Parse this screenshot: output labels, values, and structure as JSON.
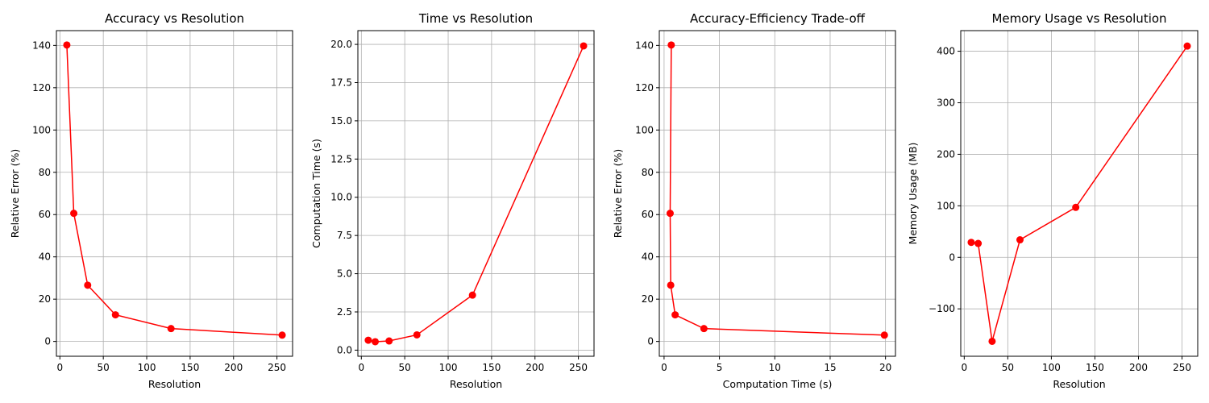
{
  "colors": {
    "series": "#ff0000",
    "grid": "#b0b0b0"
  },
  "chart_data": [
    {
      "type": "line",
      "title": "Accuracy vs Resolution",
      "xlabel": "Resolution",
      "ylabel": "Relative Error (%)",
      "xlim": [
        -4,
        268
      ],
      "ylim": [
        -7,
        147
      ],
      "xticks": [
        0,
        50,
        100,
        150,
        200,
        250
      ],
      "xtick_labels": [
        "0",
        "50",
        "100",
        "150",
        "200",
        "250"
      ],
      "yticks": [
        0,
        20,
        40,
        60,
        80,
        100,
        120,
        140
      ],
      "ytick_labels": [
        "0",
        "20",
        "40",
        "60",
        "80",
        "100",
        "120",
        "140"
      ],
      "grid": true,
      "x": [
        8,
        16,
        32,
        64,
        128,
        256
      ],
      "y": [
        140.2,
        60.6,
        26.6,
        12.6,
        6.1,
        3.0
      ]
    },
    {
      "type": "line",
      "title": "Time vs Resolution",
      "xlabel": "Resolution",
      "ylabel": "Computation Time (s)",
      "xlim": [
        -4,
        268
      ],
      "ylim": [
        -0.4,
        20.9
      ],
      "xticks": [
        0,
        50,
        100,
        150,
        200,
        250
      ],
      "xtick_labels": [
        "0",
        "50",
        "100",
        "150",
        "200",
        "250"
      ],
      "yticks": [
        0,
        2.5,
        5,
        7.5,
        10,
        12.5,
        15,
        17.5,
        20
      ],
      "ytick_labels": [
        "0.0",
        "2.5",
        "5.0",
        "7.5",
        "10.0",
        "12.5",
        "15.0",
        "17.5",
        "20.0"
      ],
      "grid": true,
      "x": [
        8,
        16,
        32,
        64,
        128,
        256
      ],
      "y": [
        0.65,
        0.55,
        0.6,
        1.0,
        3.6,
        19.9
      ]
    },
    {
      "type": "line",
      "title": "Accuracy-Efficiency Trade-off",
      "xlabel": "Computation Time (s)",
      "ylabel": "Relative Error (%)",
      "xlim": [
        -0.43,
        20.9
      ],
      "ylim": [
        -7,
        147
      ],
      "xticks": [
        0,
        5,
        10,
        15,
        20
      ],
      "xtick_labels": [
        "0",
        "5",
        "10",
        "15",
        "20"
      ],
      "yticks": [
        0,
        20,
        40,
        60,
        80,
        100,
        120,
        140
      ],
      "ytick_labels": [
        "0",
        "20",
        "40",
        "60",
        "80",
        "100",
        "120",
        "140"
      ],
      "grid": true,
      "x": [
        0.65,
        0.55,
        0.6,
        1.0,
        3.6,
        19.9
      ],
      "y": [
        140.2,
        60.6,
        26.6,
        12.6,
        6.1,
        3.0
      ]
    },
    {
      "type": "line",
      "title": "Memory Usage vs Resolution",
      "xlabel": "Resolution",
      "ylabel": "Memory Usage (MB)",
      "xlim": [
        -4,
        268
      ],
      "ylim": [
        -192,
        440
      ],
      "xticks": [
        0,
        50,
        100,
        150,
        200,
        250
      ],
      "xtick_labels": [
        "0",
        "50",
        "100",
        "150",
        "200",
        "250"
      ],
      "yticks": [
        -100,
        0,
        100,
        200,
        300,
        400
      ],
      "ytick_labels": [
        "−100",
        "0",
        "100",
        "200",
        "300",
        "400"
      ],
      "grid": true,
      "x": [
        8,
        16,
        32,
        64,
        128,
        256
      ],
      "y": [
        29,
        27,
        -163,
        34,
        97,
        410
      ]
    }
  ]
}
